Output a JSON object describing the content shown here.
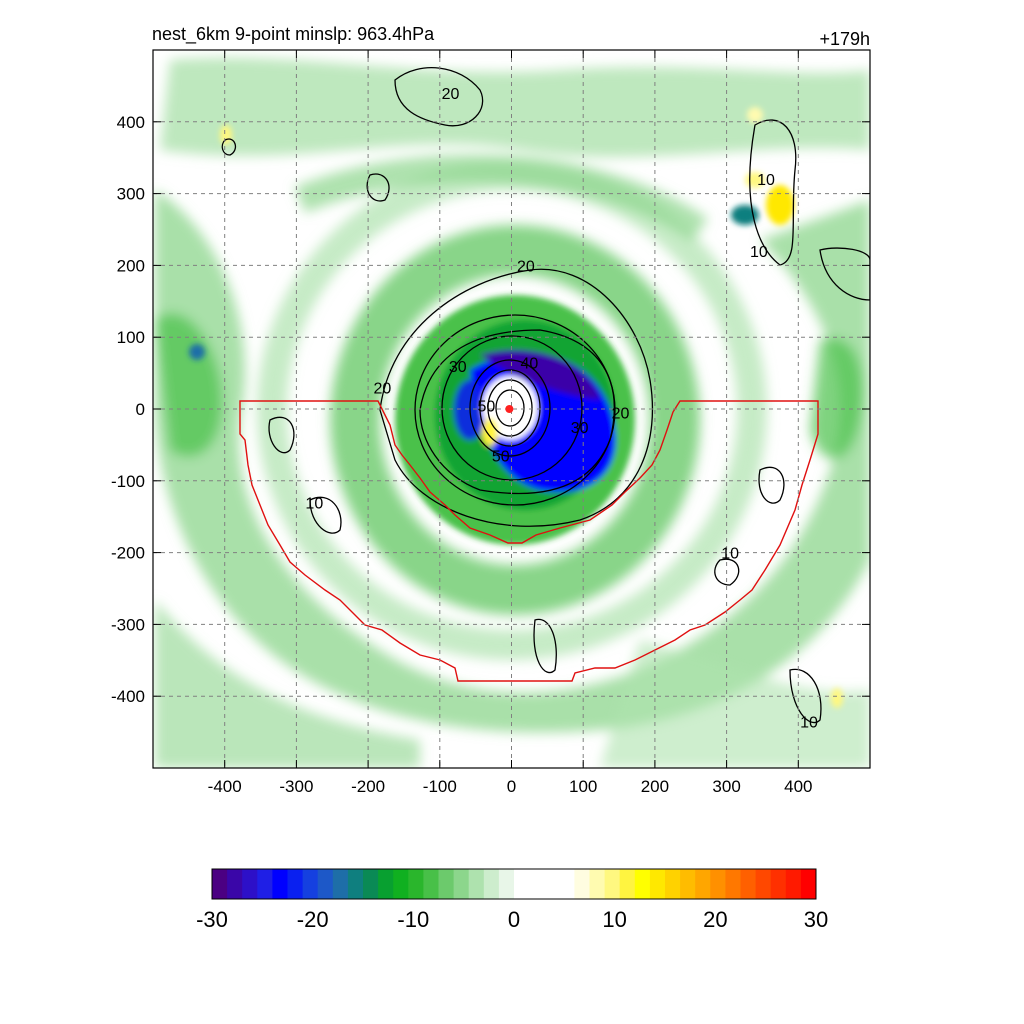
{
  "header": {
    "title": "nest_6km  9-point minslp: 963.4hPa",
    "time_label": "+179h"
  },
  "chart_data": {
    "type": "heatmap",
    "title": "nest_6km  9-point minslp: 963.4hPa",
    "xlabel": "",
    "ylabel": "",
    "xlim": [
      -500,
      500
    ],
    "ylim": [
      -500,
      500
    ],
    "x_ticks": [
      "-400",
      "-300",
      "-200",
      "-100",
      "0",
      "100",
      "200",
      "300",
      "400"
    ],
    "y_ticks": [
      "400",
      "300",
      "200",
      "100",
      "0",
      "-100",
      "-200",
      "-300",
      "-400"
    ],
    "grid": true,
    "colorbar": {
      "range": [
        -30,
        30
      ],
      "tick_labels": [
        "-30",
        "-20",
        "-10",
        "0",
        "10",
        "20",
        "30"
      ],
      "colors": [
        "#4b0082",
        "#3a06a8",
        "#2d10c8",
        "#1f1fe6",
        "#0000ff",
        "#0a20f0",
        "#1540e0",
        "#1d58c8",
        "#1e6ea8",
        "#0f7f7f",
        "#0a8a55",
        "#08a030",
        "#10b020",
        "#2ab62c",
        "#48c048",
        "#6cca6c",
        "#8cd68c",
        "#aee2ae",
        "#cdedcd",
        "#e8f6e8",
        "#ffffff",
        "#ffffff",
        "#ffffff",
        "#ffffff",
        "#fffde0",
        "#fffbb0",
        "#fff880",
        "#fff440",
        "#ffff00",
        "#ffe800",
        "#ffd200",
        "#ffbc00",
        "#ffa600",
        "#ff9000",
        "#ff7800",
        "#ff6000",
        "#ff4800",
        "#ff3000",
        "#ff1a00",
        "#ff0000"
      ]
    },
    "contour_labels": [
      {
        "text": "20",
        "x": -85,
        "y": 440
      },
      {
        "text": "20",
        "x": 20,
        "y": 200
      },
      {
        "text": "20",
        "x": -180,
        "y": 30
      },
      {
        "text": "20",
        "x": 152,
        "y": -5
      },
      {
        "text": "30",
        "x": -75,
        "y": 60
      },
      {
        "text": "30",
        "x": 95,
        "y": -25
      },
      {
        "text": "40",
        "x": 25,
        "y": 65
      },
      {
        "text": "50",
        "x": -35,
        "y": 5
      },
      {
        "text": "50",
        "x": -15,
        "y": -65
      },
      {
        "text": "10",
        "x": 355,
        "y": 320
      },
      {
        "text": "10",
        "x": 345,
        "y": 220
      },
      {
        "text": "10",
        "x": -275,
        "y": -130
      },
      {
        "text": "10",
        "x": 305,
        "y": -200
      },
      {
        "text": "10",
        "x": 415,
        "y": -435
      }
    ],
    "storm_center": {
      "x": -3,
      "y": 0
    }
  },
  "colors": {
    "contour": "#000000",
    "domain_outline": "#e01010",
    "center_marker": "#ff2020",
    "grid": "#808080"
  }
}
